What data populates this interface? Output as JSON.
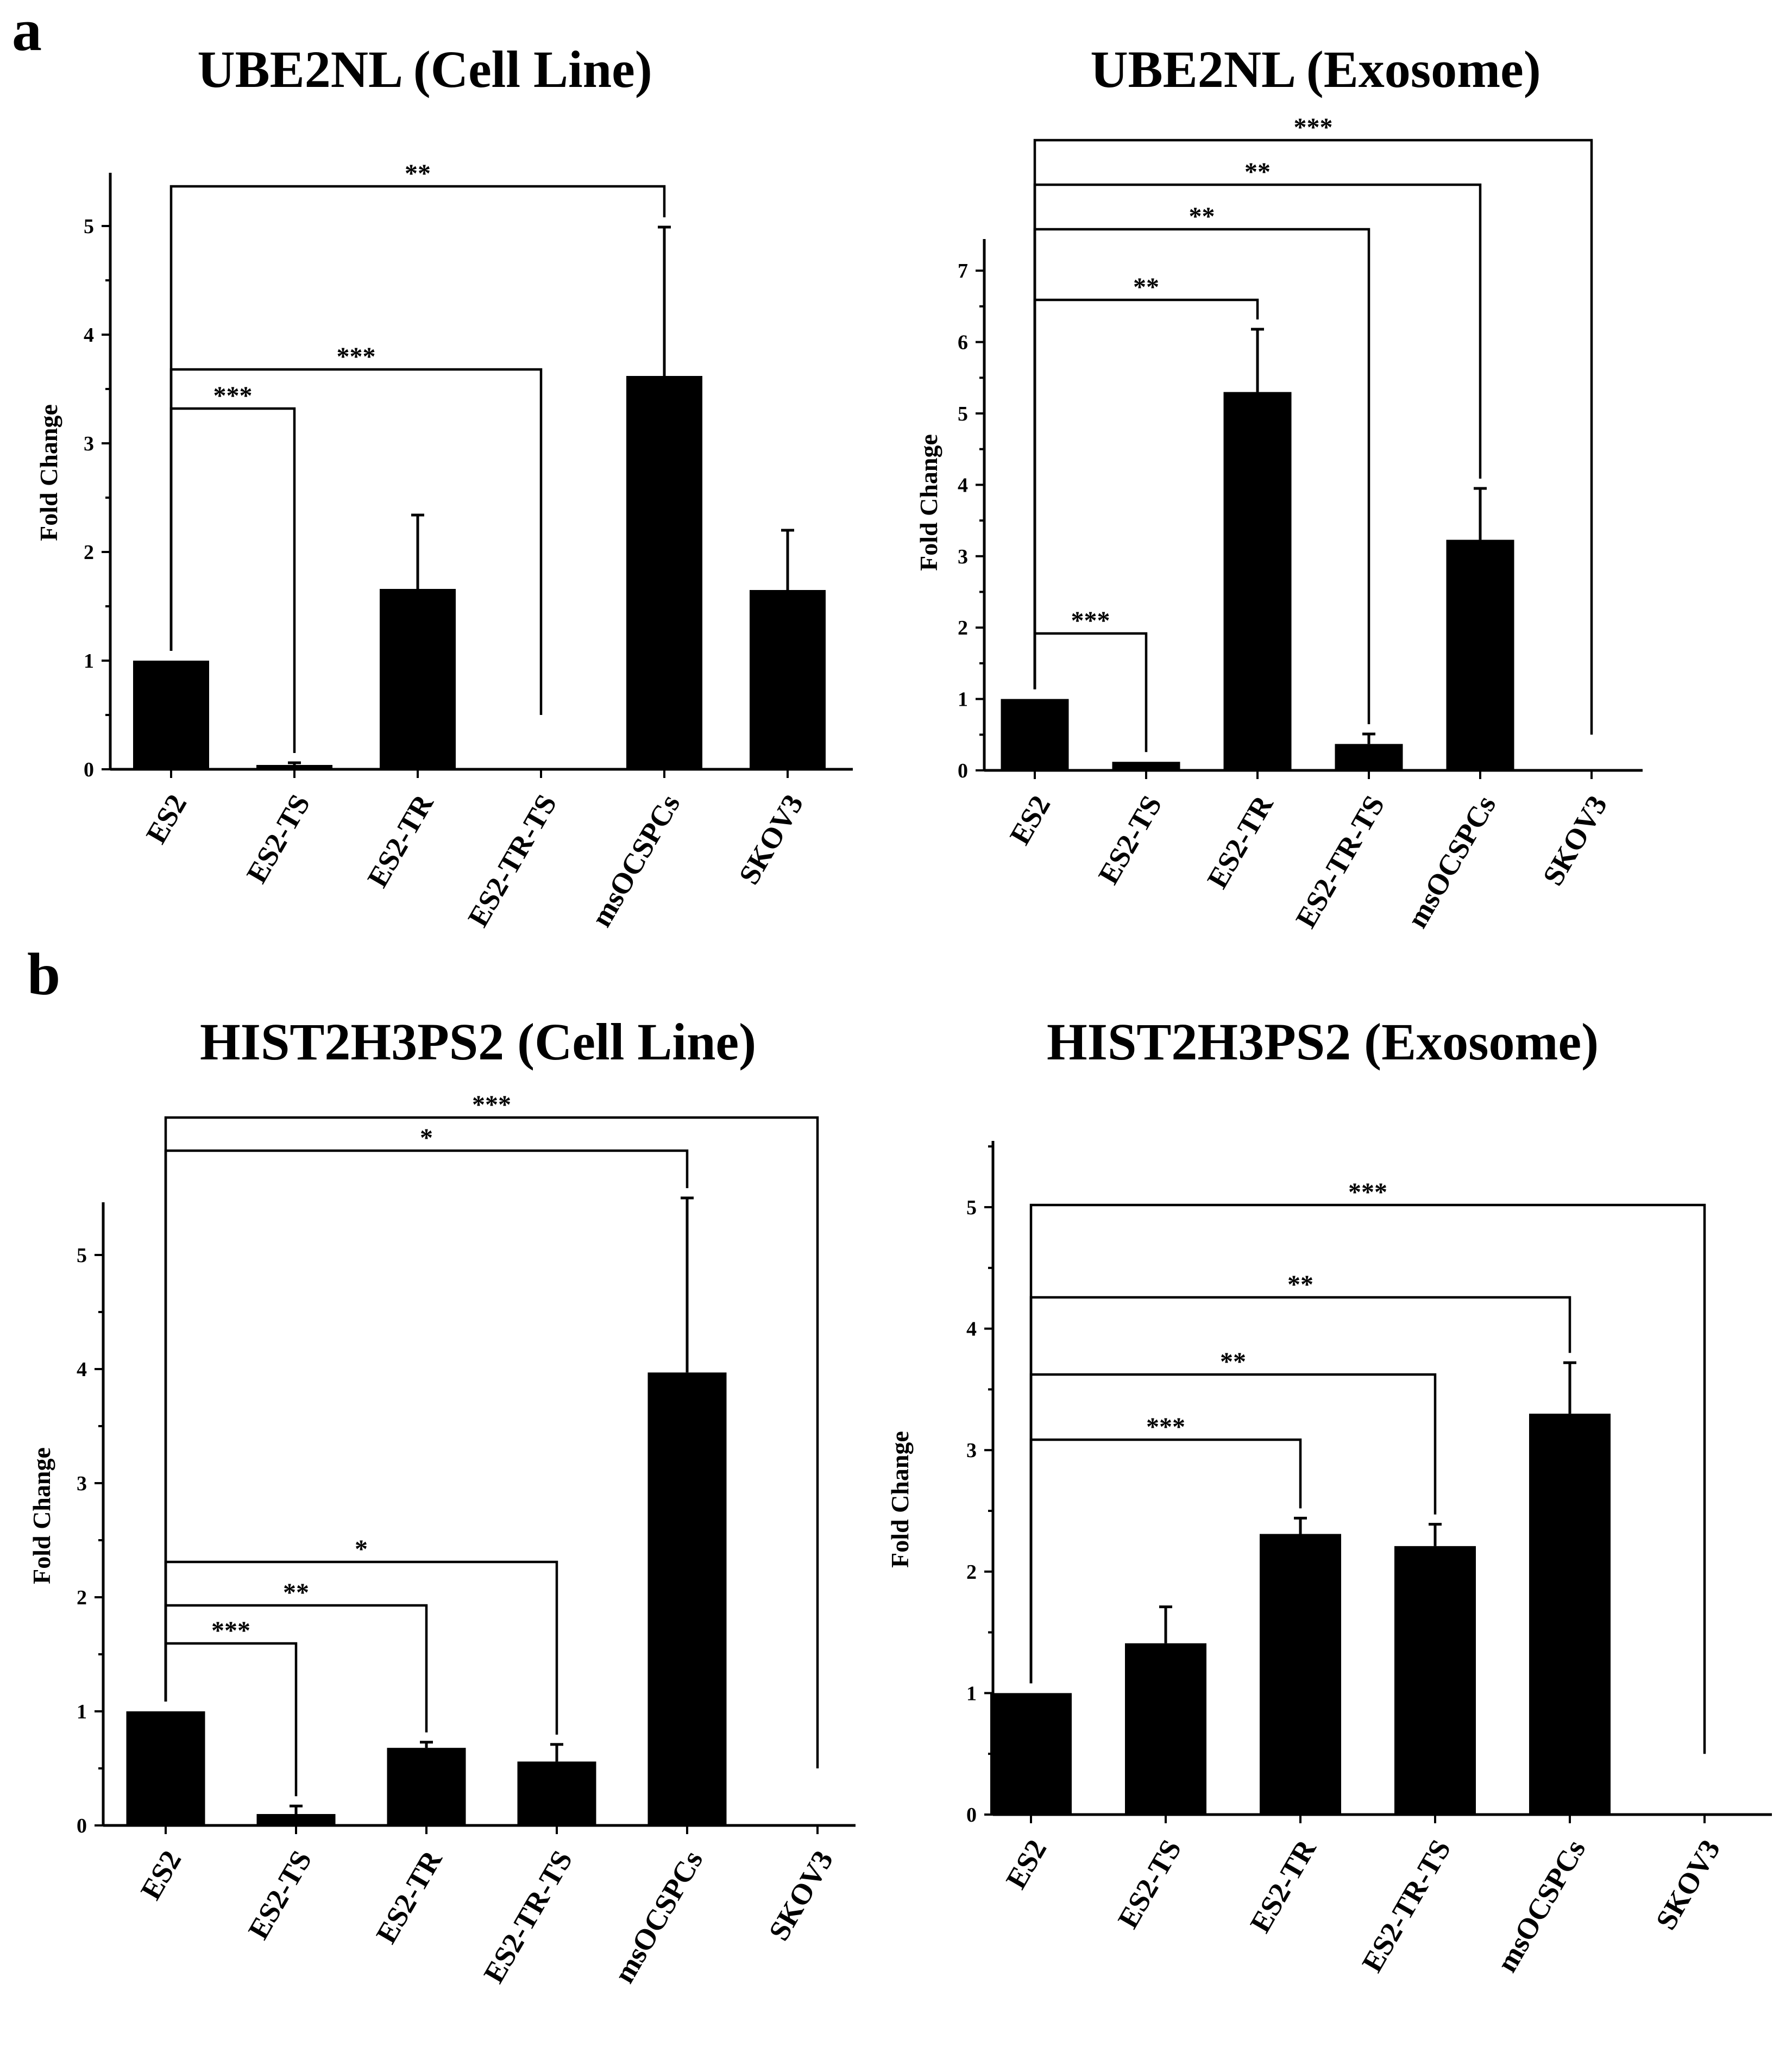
{
  "panel_labels": [
    "a",
    "b"
  ],
  "chart_data": [
    {
      "type": "bar",
      "title": "UBE2NL (Cell Line)",
      "xlabel": "",
      "ylabel": "Fold Change",
      "categories": [
        "ES2",
        "ES2-TS",
        "ES2-TR",
        "ES2-TR-TS",
        "msOCSPCs",
        "SKOV3"
      ],
      "values": [
        1.0,
        0.04,
        1.66,
        0.0,
        3.62,
        1.65
      ],
      "errors": [
        0,
        0.02,
        0.68,
        0,
        1.37,
        0.55
      ],
      "ylim": [
        0,
        5.5
      ],
      "yticks": [
        "0",
        "1",
        "2",
        "3",
        "4",
        "5"
      ],
      "significance": [
        {
          "from": "ES2",
          "to": "ES2-TS",
          "label": "***"
        },
        {
          "from": "ES2",
          "to": "ES2-TR-TS",
          "label": "***"
        },
        {
          "from": "ES2",
          "to": "msOCSPCs",
          "label": "**"
        }
      ]
    },
    {
      "type": "bar",
      "title": "UBE2NL (Exosome)",
      "xlabel": "",
      "ylabel": "Fold Change",
      "categories": [
        "ES2",
        "ES2-TS",
        "ES2-TR",
        "ES2-TR-TS",
        "msOCSPCs",
        "SKOV3"
      ],
      "values": [
        1.0,
        0.12,
        5.3,
        0.37,
        3.23,
        0.0
      ],
      "errors": [
        0,
        0,
        0.88,
        0.14,
        0.72,
        0
      ],
      "ylim": [
        0,
        7.5
      ],
      "yticks": [
        "0",
        "1",
        "2",
        "3",
        "4",
        "5",
        "6",
        "7"
      ],
      "significance": [
        {
          "from": "ES2",
          "to": "ES2-TS",
          "label": "***"
        },
        {
          "from": "ES2",
          "to": "ES2-TR",
          "label": "**"
        },
        {
          "from": "ES2",
          "to": "ES2-TR-TS",
          "label": "**"
        },
        {
          "from": "ES2",
          "to": "msOCSPCs",
          "label": "**"
        },
        {
          "from": "ES2",
          "to": "SKOV3",
          "label": "***"
        }
      ]
    },
    {
      "type": "bar",
      "title": "HIST2H3PS2 (Cell Line)",
      "xlabel": "",
      "ylabel": "Fold Change",
      "categories": [
        "ES2",
        "ES2-TS",
        "ES2-TR",
        "ES2-TR-TS",
        "msOCSPCs",
        "SKOV3"
      ],
      "values": [
        1.0,
        0.1,
        0.68,
        0.56,
        3.97,
        0.0
      ],
      "errors": [
        0,
        0.07,
        0.05,
        0.15,
        1.53,
        0
      ],
      "ylim": [
        0,
        5.5
      ],
      "yticks": [
        "0",
        "1",
        "2",
        "3",
        "4",
        "5"
      ],
      "significance": [
        {
          "from": "ES2",
          "to": "ES2-TS",
          "label": "***"
        },
        {
          "from": "ES2",
          "to": "ES2-TR",
          "label": "**"
        },
        {
          "from": "ES2",
          "to": "ES2-TR-TS",
          "label": "*"
        },
        {
          "from": "ES2",
          "to": "msOCSPCs",
          "label": "*"
        },
        {
          "from": "ES2",
          "to": "SKOV3",
          "label": "***"
        }
      ]
    },
    {
      "type": "bar",
      "title": "HIST2H3PS2 (Exosome)",
      "xlabel": "",
      "ylabel": "Fold Change",
      "categories": [
        "ES2",
        "ES2-TS",
        "ES2-TR",
        "ES2-TR-TS",
        "msOCSPCs",
        "SKOV3"
      ],
      "values": [
        1.0,
        1.41,
        2.31,
        2.21,
        3.3,
        0.0
      ],
      "errors": [
        0,
        0.3,
        0.13,
        0.18,
        0.42,
        0
      ],
      "ylim": [
        0,
        5.5
      ],
      "yticks": [
        "0",
        "1",
        "2",
        "3",
        "4",
        "5"
      ],
      "significance": [
        {
          "from": "ES2",
          "to": "ES2-TR",
          "label": "***"
        },
        {
          "from": "ES2",
          "to": "ES2-TR-TS",
          "label": "**"
        },
        {
          "from": "ES2",
          "to": "msOCSPCs",
          "label": "**"
        },
        {
          "from": "ES2",
          "to": "SKOV3",
          "label": "***"
        }
      ]
    }
  ]
}
